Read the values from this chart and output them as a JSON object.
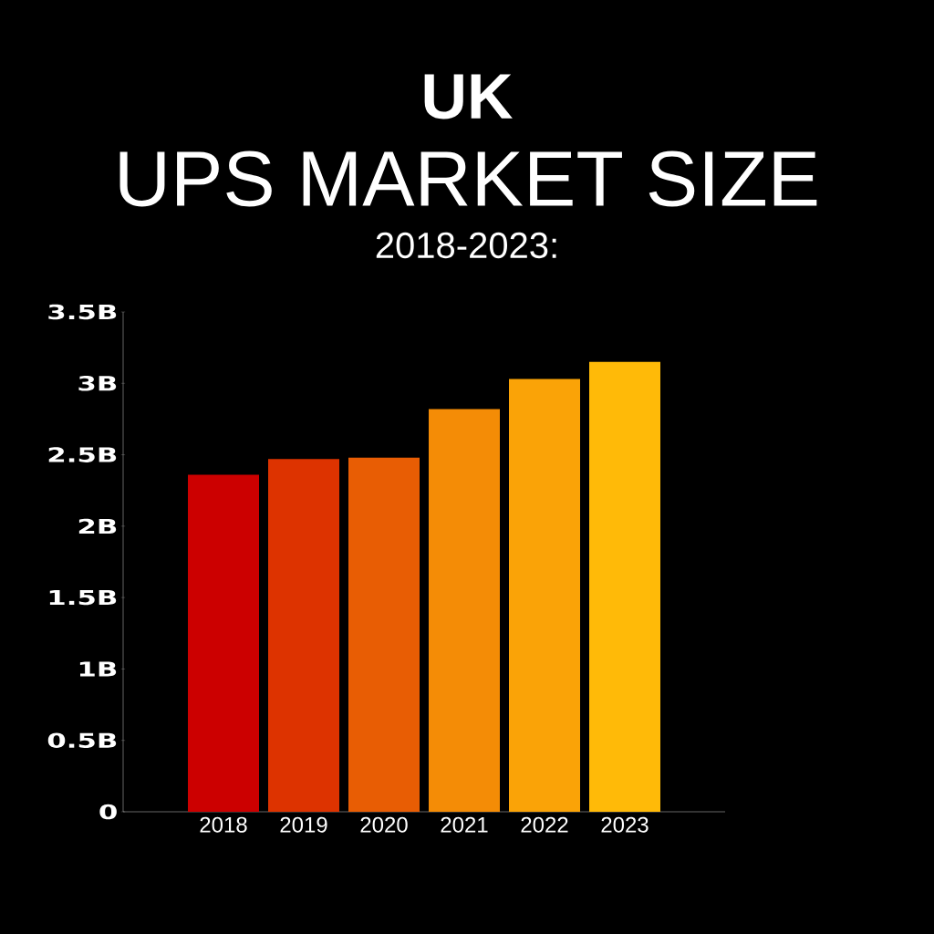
{
  "chart_data": {
    "type": "bar",
    "title": "UK",
    "subtitle": "UPS MARKET SIZE",
    "annotations": [
      "2018-2023:"
    ],
    "categories": [
      "2018",
      "2019",
      "2020",
      "2021",
      "2022",
      "2023"
    ],
    "values": [
      2.36,
      2.47,
      2.48,
      2.82,
      3.03,
      3.15
    ],
    "colors": [
      "#cc0000",
      "#dd3300",
      "#e85d04",
      "#f48c06",
      "#faa307",
      "#ffba08"
    ],
    "ylim": [
      0,
      3.5
    ],
    "yticks": [
      {
        "value": 0,
        "label": "0"
      },
      {
        "value": 0.5,
        "label": "0.5B"
      },
      {
        "value": 1,
        "label": "1B"
      },
      {
        "value": 1.5,
        "label": "1.5B"
      },
      {
        "value": 2,
        "label": "2B"
      },
      {
        "value": 2.5,
        "label": "2.5B"
      },
      {
        "value": 3,
        "label": "3B"
      },
      {
        "value": 3.5,
        "label": "3.5B"
      }
    ]
  }
}
